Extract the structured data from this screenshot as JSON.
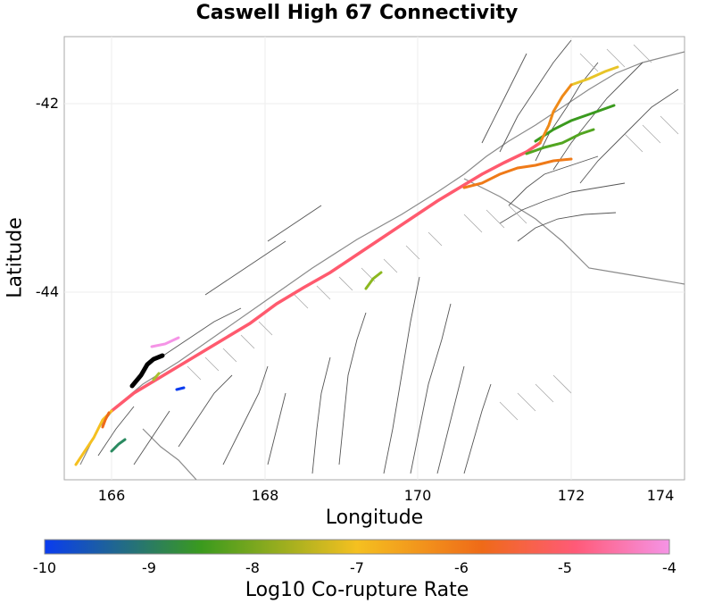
{
  "title": "Caswell High 67 Connectivity",
  "x_axis": {
    "label": "Longitude",
    "ticks": [
      "166",
      "168",
      "170",
      "172",
      "174"
    ]
  },
  "y_axis": {
    "label": "Latitude",
    "ticks": [
      "-42",
      "-44"
    ]
  },
  "colorbar": {
    "label": "Log10 Co-rupture Rate",
    "ticks": [
      "-10",
      "-9",
      "-8",
      "-7",
      "-6",
      "-5",
      "-4"
    ],
    "colors": [
      "#0a3cf0",
      "#3a9a1e",
      "#f5c020",
      "#ef6a18",
      "#ff5a78",
      "#f594e6"
    ]
  },
  "ruptures": [
    {
      "id": "alpine-main",
      "value": -5.0
    },
    {
      "id": "alpine-southwest",
      "value": -6.6
    },
    {
      "id": "northeast-green-1",
      "value": -7.9
    },
    {
      "id": "northeast-green-2",
      "value": -8.0
    },
    {
      "id": "northeast-yellow",
      "value": -7.2
    },
    {
      "id": "northeast-orange",
      "value": -6.0
    },
    {
      "id": "fiordland-pink",
      "value": -4.4
    },
    {
      "id": "fiordland-black",
      "value": -11.0
    },
    {
      "id": "small-green",
      "value": -7.8
    },
    {
      "id": "small-teal",
      "value": -9.2
    },
    {
      "id": "small-blue",
      "value": -9.8
    }
  ]
}
